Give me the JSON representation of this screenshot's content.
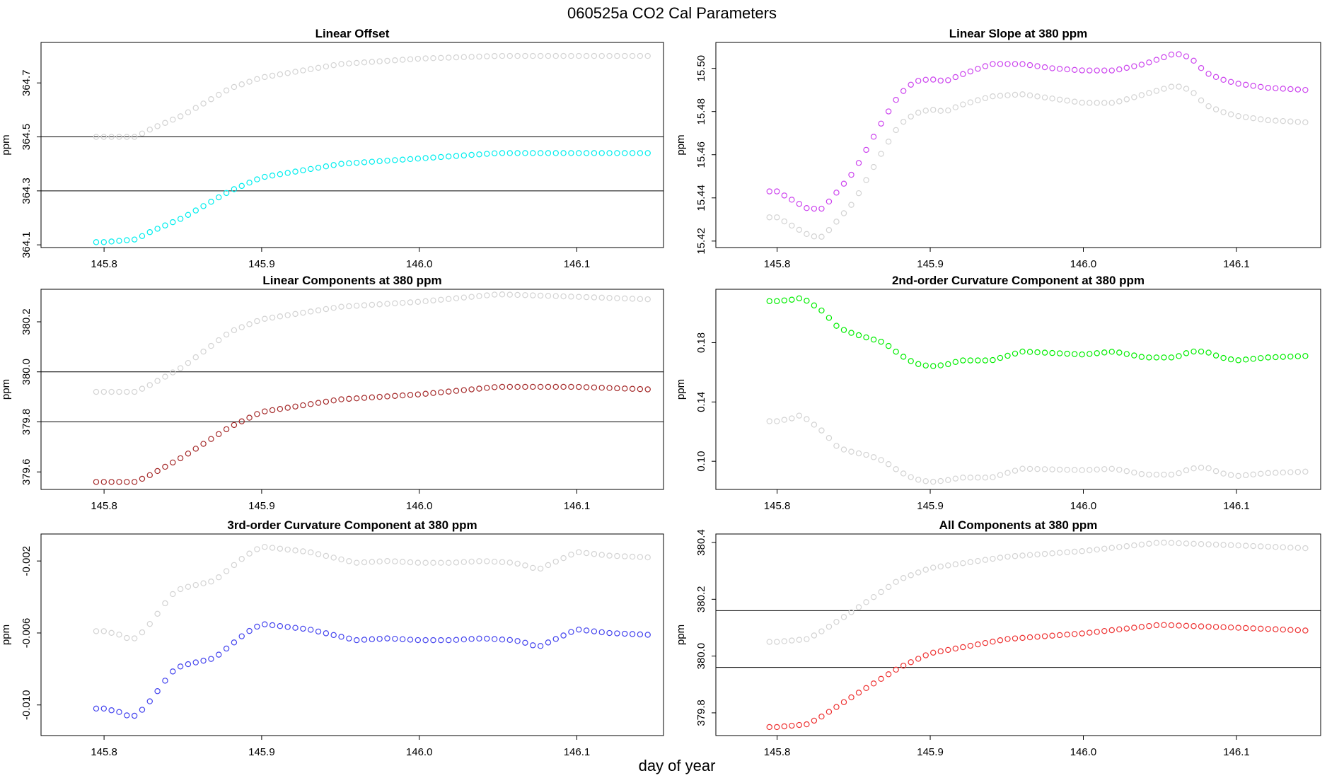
{
  "title": "060525a   CO2 Cal Parameters",
  "xlabel": "day of year",
  "chart_data": [
    {
      "type": "scatter",
      "title": "Linear Offset",
      "ylabel": "ppm",
      "color": "#00eeee",
      "ref_color": "#d3d3d3",
      "xlim": [
        145.76,
        146.155
      ],
      "ylim": [
        364.09,
        364.85
      ],
      "xticks": [
        "145.8",
        "145.9",
        "146.0",
        "146.1"
      ],
      "yticks": [
        "364.1",
        "364.3",
        "364.5",
        "364.7"
      ],
      "hlines": [
        364.5,
        364.3
      ],
      "key_x": [
        145.795,
        145.8,
        145.82,
        145.83,
        145.85,
        145.88,
        145.9,
        145.95,
        146.0,
        146.05,
        146.1,
        146.145
      ],
      "series_y": [
        364.11,
        364.11,
        364.12,
        364.15,
        364.2,
        364.3,
        364.35,
        364.4,
        364.42,
        364.44,
        364.44,
        364.44
      ],
      "ref_y": [
        364.5,
        364.5,
        364.5,
        364.53,
        364.58,
        364.68,
        364.72,
        364.77,
        364.79,
        364.8,
        364.8,
        364.8
      ]
    },
    {
      "type": "scatter",
      "title": "Linear Slope at 380 ppm",
      "ylabel": "ppm",
      "color": "#cc44ee",
      "ref_color": "#d3d3d3",
      "xlim": [
        145.76,
        146.155
      ],
      "ylim": [
        15.417,
        15.512
      ],
      "xticks": [
        "145.8",
        "145.9",
        "146.0",
        "146.1"
      ],
      "yticks": [
        "15.42",
        "15.44",
        "15.46",
        "15.48",
        "15.50"
      ],
      "hlines": [],
      "key_x": [
        145.795,
        145.8,
        145.82,
        145.825,
        145.83,
        145.85,
        145.87,
        145.88,
        145.89,
        145.9,
        145.91,
        145.92,
        145.94,
        145.96,
        145.98,
        146.0,
        146.02,
        146.04,
        146.06,
        146.07,
        146.08,
        146.09,
        146.1,
        146.12,
        146.145
      ],
      "series_y": [
        15.443,
        15.443,
        15.435,
        15.435,
        15.435,
        15.452,
        15.477,
        15.488,
        15.494,
        15.495,
        15.494,
        15.497,
        15.502,
        15.502,
        15.5,
        15.499,
        15.499,
        15.502,
        15.507,
        15.505,
        15.498,
        15.495,
        15.493,
        15.491,
        15.49
      ],
      "ref_y": [
        15.431,
        15.431,
        15.423,
        15.422,
        15.422,
        15.438,
        15.463,
        15.474,
        15.479,
        15.481,
        15.48,
        15.483,
        15.487,
        15.488,
        15.486,
        15.484,
        15.484,
        15.488,
        15.492,
        15.49,
        15.483,
        15.48,
        15.478,
        15.476,
        15.475
      ]
    },
    {
      "type": "scatter",
      "title": "Linear Components at 380 ppm",
      "ylabel": "ppm",
      "color": "#a52a2a",
      "ref_color": "#d3d3d3",
      "xlim": [
        145.76,
        146.155
      ],
      "ylim": [
        379.53,
        380.33
      ],
      "xticks": [
        "145.8",
        "145.9",
        "146.0",
        "146.1"
      ],
      "yticks": [
        "379.6",
        "379.8",
        "380.0",
        "380.2"
      ],
      "hlines": [
        380.0,
        379.8
      ],
      "key_x": [
        145.795,
        145.8,
        145.82,
        145.83,
        145.85,
        145.88,
        145.9,
        145.95,
        146.0,
        146.05,
        146.1,
        146.145
      ],
      "series_y": [
        379.56,
        379.56,
        379.56,
        379.59,
        379.66,
        379.78,
        379.84,
        379.89,
        379.91,
        379.94,
        379.94,
        379.93
      ],
      "ref_y": [
        379.92,
        379.92,
        379.92,
        379.95,
        380.02,
        380.16,
        380.21,
        380.26,
        380.28,
        380.31,
        380.3,
        380.29
      ]
    },
    {
      "type": "scatter",
      "title": "2nd-order Curvature Component at 380 ppm",
      "ylabel": "ppm",
      "color": "#00ee00",
      "ref_color": "#d3d3d3",
      "xlim": [
        145.76,
        146.155
      ],
      "ylim": [
        0.081,
        0.216
      ],
      "xticks": [
        "145.8",
        "145.9",
        "146.0",
        "146.1"
      ],
      "yticks": [
        "0.10",
        "0.14",
        "0.18"
      ],
      "hlines": [],
      "key_x": [
        145.795,
        145.8,
        145.81,
        145.815,
        145.82,
        145.83,
        145.84,
        145.85,
        145.86,
        145.87,
        145.88,
        145.89,
        145.9,
        145.91,
        145.92,
        145.94,
        145.95,
        145.96,
        146.0,
        146.02,
        146.04,
        146.06,
        146.07,
        146.08,
        146.09,
        146.1,
        146.12,
        146.145
      ],
      "series_y": [
        0.208,
        0.208,
        0.209,
        0.21,
        0.208,
        0.201,
        0.19,
        0.186,
        0.183,
        0.18,
        0.172,
        0.166,
        0.164,
        0.165,
        0.168,
        0.168,
        0.171,
        0.174,
        0.172,
        0.174,
        0.17,
        0.17,
        0.174,
        0.174,
        0.17,
        0.168,
        0.17,
        0.171
      ],
      "ref_y": [
        0.127,
        0.127,
        0.129,
        0.131,
        0.128,
        0.12,
        0.109,
        0.106,
        0.104,
        0.1,
        0.093,
        0.088,
        0.086,
        0.087,
        0.089,
        0.089,
        0.092,
        0.095,
        0.094,
        0.095,
        0.091,
        0.091,
        0.095,
        0.096,
        0.092,
        0.09,
        0.092,
        0.093
      ]
    },
    {
      "type": "scatter",
      "title": "3rd-order Curvature Component at 380 ppm",
      "ylabel": "ppm",
      "color": "#4444ee",
      "ref_color": "#d3d3d3",
      "xlim": [
        145.76,
        146.155
      ],
      "ylim": [
        -0.0117,
        -0.0005
      ],
      "xticks": [
        "145.8",
        "145.9",
        "146.0",
        "146.1"
      ],
      "yticks": [
        "-0.002",
        "-0.006",
        "-0.010"
      ],
      "hlines": [],
      "key_x": [
        145.795,
        145.8,
        145.81,
        145.815,
        145.82,
        145.825,
        145.83,
        145.835,
        145.84,
        145.845,
        145.85,
        145.86,
        145.87,
        145.88,
        145.89,
        145.9,
        145.91,
        145.93,
        145.95,
        145.96,
        145.98,
        146.0,
        146.02,
        146.04,
        146.06,
        146.07,
        146.075,
        146.08,
        146.09,
        146.1,
        146.12,
        146.145
      ],
      "series_y": [
        -0.0102,
        -0.0102,
        -0.0104,
        -0.0106,
        -0.0106,
        -0.0102,
        -0.0097,
        -0.0091,
        -0.0085,
        -0.008,
        -0.0078,
        -0.0076,
        -0.0074,
        -0.0067,
        -0.006,
        -0.0055,
        -0.0056,
        -0.0058,
        -0.0062,
        -0.0064,
        -0.0063,
        -0.0064,
        -0.0064,
        -0.0063,
        -0.0064,
        -0.0066,
        -0.0068,
        -0.0066,
        -0.0062,
        -0.0058,
        -0.006,
        -0.0061
      ],
      "ref_y": [
        -0.0059,
        -0.0059,
        -0.0061,
        -0.0063,
        -0.0063,
        -0.0059,
        -0.0054,
        -0.0048,
        -0.0042,
        -0.0037,
        -0.0035,
        -0.0033,
        -0.0031,
        -0.0024,
        -0.0017,
        -0.0012,
        -0.0013,
        -0.0015,
        -0.0019,
        -0.0021,
        -0.002,
        -0.0021,
        -0.0021,
        -0.002,
        -0.0021,
        -0.0023,
        -0.0025,
        -0.0023,
        -0.0019,
        -0.0015,
        -0.0017,
        -0.0018
      ]
    },
    {
      "type": "scatter",
      "title": "All Components at 380 ppm",
      "ylabel": "ppm",
      "color": "#ee3333",
      "ref_color": "#d3d3d3",
      "xlim": [
        145.76,
        146.155
      ],
      "ylim": [
        379.72,
        380.43
      ],
      "xticks": [
        "145.8",
        "145.9",
        "146.0",
        "146.1"
      ],
      "yticks": [
        "379.8",
        "380.0",
        "380.2",
        "380.4"
      ],
      "hlines": [
        380.16,
        379.96
      ],
      "key_x": [
        145.795,
        145.8,
        145.82,
        145.83,
        145.85,
        145.88,
        145.9,
        145.95,
        146.0,
        146.05,
        146.1,
        146.145
      ],
      "series_y": [
        379.75,
        379.75,
        379.76,
        379.79,
        379.86,
        379.96,
        380.01,
        380.06,
        380.08,
        380.11,
        380.1,
        380.09
      ],
      "ref_y": [
        380.05,
        380.05,
        380.06,
        380.09,
        380.16,
        380.27,
        380.31,
        380.35,
        380.37,
        380.4,
        380.39,
        380.38
      ]
    }
  ]
}
